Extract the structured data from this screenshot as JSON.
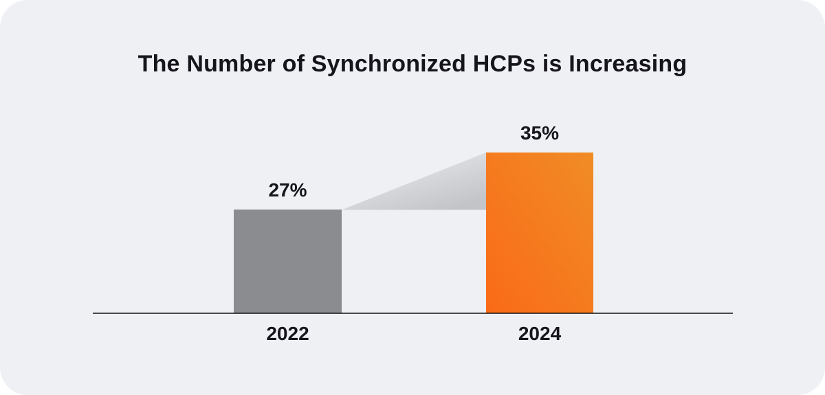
{
  "card": {
    "background_color": "#eef0f3",
    "page_background_color": "#ffffff"
  },
  "chart_data": {
    "type": "bar",
    "title": "The Number of Synchronized HCPs is Increasing",
    "categories": [
      "2022",
      "2024"
    ],
    "values": [
      27,
      35
    ],
    "value_labels": [
      "27%",
      "35%"
    ],
    "xlabel": "",
    "ylabel": "",
    "legend": "none",
    "grid": "off",
    "axis": "x-baseline-only",
    "connector": "gradient wedge from top of 2022 bar to top of 2024 bar",
    "colors": {
      "bar_2022": "#8a8c8f",
      "bar_2024_gradient_start": "#fa6a18",
      "bar_2024_gradient_end": "#f08c25",
      "connector_gradient_start": "#f0f1f4",
      "connector_gradient_end": "#c3c4c8",
      "axis_line": "#0e0e0e",
      "text": "#17151c",
      "background": "#eef0f3"
    }
  }
}
